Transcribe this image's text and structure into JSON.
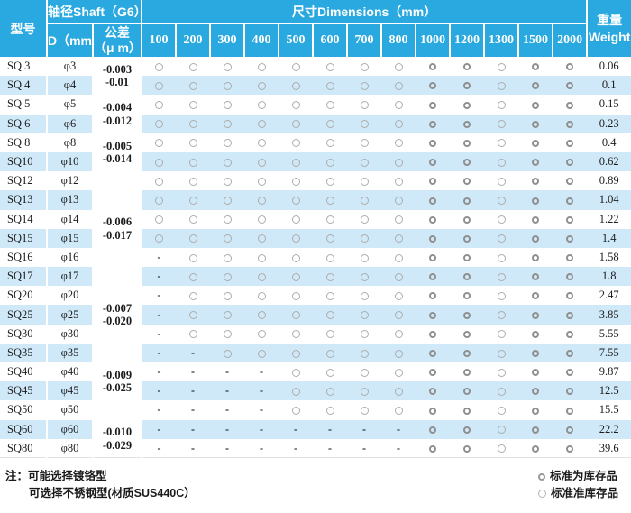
{
  "colors": {
    "header_blue": "#29a9e0",
    "stripe_blue": "#cfe9f8",
    "circle_stock": "#8f8f8f",
    "circle_semi": "#adadad"
  },
  "header": {
    "model": "型号",
    "shaft": "轴径Shaft（G6）",
    "d": "D（mm）",
    "tolerance_line1": "公差",
    "tolerance_line2": "（μ m）",
    "dimensions": "尺寸Dimensions（mm）",
    "sizes": [
      "100",
      "200",
      "300",
      "400",
      "500",
      "600",
      "700",
      "800",
      "1000",
      "1200",
      "1300",
      "1500",
      "2000"
    ],
    "weight_cn": "重量",
    "weight_en": "Weight"
  },
  "column_marker_types": [
    "semi",
    "semi",
    "semi",
    "semi",
    "semi",
    "semi",
    "semi",
    "semi",
    "stock",
    "stock",
    "semi",
    "stock",
    "stock"
  ],
  "tolerance_groups": [
    {
      "start": 0,
      "span": 2,
      "lines": [
        "-0.003",
        "-0.01"
      ]
    },
    {
      "start": 2,
      "span": 2,
      "lines": [
        "-0.004",
        "-0.012"
      ]
    },
    {
      "start": 4,
      "span": 2,
      "lines": [
        "-0.005",
        "-0.014"
      ]
    },
    {
      "start": 6,
      "span": 6,
      "lines": [
        "-0.006",
        "-0.017"
      ]
    },
    {
      "start": 12,
      "span": 3,
      "lines": [
        "-0.007",
        "-0.020"
      ]
    },
    {
      "start": 15,
      "span": 4,
      "lines": [
        "-0.009",
        "-0.025"
      ]
    },
    {
      "start": 19,
      "span": 2,
      "lines": [
        "-0.010",
        "-0.029"
      ]
    }
  ],
  "rows": [
    {
      "model": "SQ 3",
      "d": "φ3",
      "avail": [
        "o",
        "o",
        "o",
        "o",
        "o",
        "o",
        "o",
        "o",
        "o",
        "o",
        "o",
        "o",
        "o"
      ],
      "weight": "0.06"
    },
    {
      "model": "SQ 4",
      "d": "φ4",
      "avail": [
        "o",
        "o",
        "o",
        "o",
        "o",
        "o",
        "o",
        "o",
        "o",
        "o",
        "o",
        "o",
        "o"
      ],
      "weight": "0.1"
    },
    {
      "model": "SQ 5",
      "d": "φ5",
      "avail": [
        "o",
        "o",
        "o",
        "o",
        "o",
        "o",
        "o",
        "o",
        "o",
        "o",
        "o",
        "o",
        "o"
      ],
      "weight": "0.15"
    },
    {
      "model": "SQ 6",
      "d": "φ6",
      "avail": [
        "o",
        "o",
        "o",
        "o",
        "o",
        "o",
        "o",
        "o",
        "o",
        "o",
        "o",
        "o",
        "o"
      ],
      "weight": "0.23"
    },
    {
      "model": "SQ 8",
      "d": "φ8",
      "avail": [
        "o",
        "o",
        "o",
        "o",
        "o",
        "o",
        "o",
        "o",
        "o",
        "o",
        "o",
        "o",
        "o"
      ],
      "weight": "0.4"
    },
    {
      "model": "SQ10",
      "d": "φ10",
      "avail": [
        "o",
        "o",
        "o",
        "o",
        "o",
        "o",
        "o",
        "o",
        "o",
        "o",
        "o",
        "o",
        "o"
      ],
      "weight": "0.62"
    },
    {
      "model": "SQ12",
      "d": "φ12",
      "avail": [
        "o",
        "o",
        "o",
        "o",
        "o",
        "o",
        "o",
        "o",
        "o",
        "o",
        "o",
        "o",
        "o"
      ],
      "weight": "0.89"
    },
    {
      "model": "SQ13",
      "d": "φ13",
      "avail": [
        "o",
        "o",
        "o",
        "o",
        "o",
        "o",
        "o",
        "o",
        "o",
        "o",
        "o",
        "o",
        "o"
      ],
      "weight": "1.04"
    },
    {
      "model": "SQ14",
      "d": "φ14",
      "avail": [
        "o",
        "o",
        "o",
        "o",
        "o",
        "o",
        "o",
        "o",
        "o",
        "o",
        "o",
        "o",
        "o"
      ],
      "weight": "1.22"
    },
    {
      "model": "SQ15",
      "d": "φ15",
      "avail": [
        "o",
        "o",
        "o",
        "o",
        "o",
        "o",
        "o",
        "o",
        "o",
        "o",
        "o",
        "o",
        "o"
      ],
      "weight": "1.4"
    },
    {
      "model": "SQ16",
      "d": "φ16",
      "avail": [
        "-",
        "o",
        "o",
        "o",
        "o",
        "o",
        "o",
        "o",
        "o",
        "o",
        "o",
        "o",
        "o"
      ],
      "weight": "1.58"
    },
    {
      "model": "SQ17",
      "d": "φ17",
      "avail": [
        "-",
        "o",
        "o",
        "o",
        "o",
        "o",
        "o",
        "o",
        "o",
        "o",
        "o",
        "o",
        "o"
      ],
      "weight": "1.8"
    },
    {
      "model": "SQ20",
      "d": "φ20",
      "avail": [
        "-",
        "o",
        "o",
        "o",
        "o",
        "o",
        "o",
        "o",
        "o",
        "o",
        "o",
        "o",
        "o"
      ],
      "weight": "2.47"
    },
    {
      "model": "SQ25",
      "d": "φ25",
      "avail": [
        "-",
        "o",
        "o",
        "o",
        "o",
        "o",
        "o",
        "o",
        "o",
        "o",
        "o",
        "o",
        "o"
      ],
      "weight": "3.85"
    },
    {
      "model": "SQ30",
      "d": "φ30",
      "avail": [
        "-",
        "o",
        "o",
        "o",
        "o",
        "o",
        "o",
        "o",
        "o",
        "o",
        "o",
        "o",
        "o"
      ],
      "weight": "5.55"
    },
    {
      "model": "SQ35",
      "d": "φ35",
      "avail": [
        "-",
        "-",
        "o",
        "o",
        "o",
        "o",
        "o",
        "o",
        "o",
        "o",
        "o",
        "o",
        "o"
      ],
      "weight": "7.55"
    },
    {
      "model": "SQ40",
      "d": "φ40",
      "avail": [
        "-",
        "-",
        "-",
        "-",
        "o",
        "o",
        "o",
        "o",
        "o",
        "o",
        "o",
        "o",
        "o"
      ],
      "weight": "9.87"
    },
    {
      "model": "SQ45",
      "d": "φ45",
      "avail": [
        "-",
        "-",
        "-",
        "-",
        "o",
        "o",
        "o",
        "o",
        "o",
        "o",
        "o",
        "o",
        "o"
      ],
      "weight": "12.5"
    },
    {
      "model": "SQ50",
      "d": "φ50",
      "avail": [
        "-",
        "-",
        "-",
        "-",
        "o",
        "o",
        "o",
        "o",
        "o",
        "o",
        "o",
        "o",
        "o"
      ],
      "weight": "15.5"
    },
    {
      "model": "SQ60",
      "d": "φ60",
      "avail": [
        "-",
        "-",
        "-",
        "-",
        "-",
        "-",
        "-",
        "-",
        "o",
        "o",
        "o",
        "o",
        "o"
      ],
      "weight": "22.2"
    },
    {
      "model": "SQ80",
      "d": "φ80",
      "avail": [
        "-",
        "-",
        "-",
        "-",
        "-",
        "-",
        "-",
        "-",
        "o",
        "o",
        "o",
        "o",
        "o"
      ],
      "weight": "39.6"
    }
  ],
  "notes": {
    "prefix": "注：",
    "line1": "可能选择镀铬型",
    "line2": "可选择不锈钢型(材质SUS440C）"
  },
  "legend": [
    {
      "symbol": "stock-circle",
      "label": "标准为库存品"
    },
    {
      "symbol": "semi-circle",
      "label": "标准准库存品"
    }
  ]
}
